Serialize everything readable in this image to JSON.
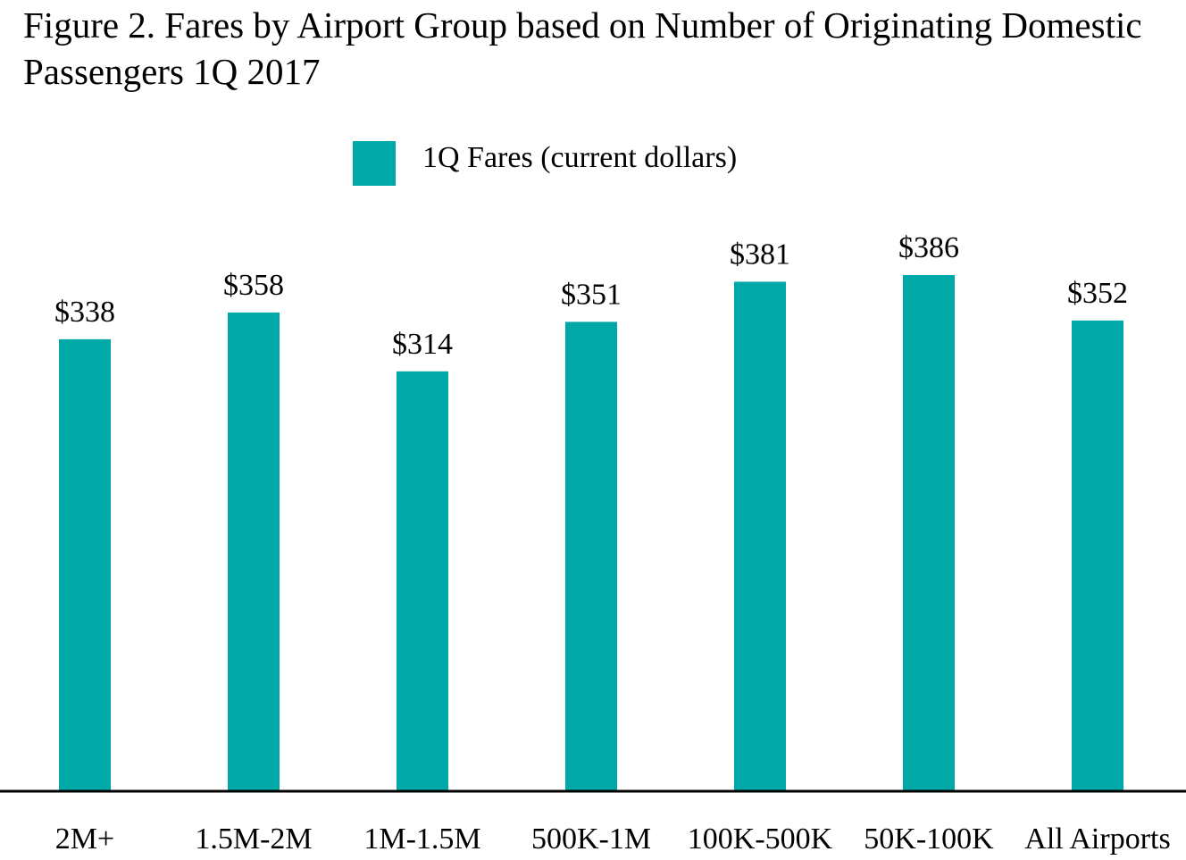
{
  "title": "Figure 2. Fares by Airport Group based on Number of Originating Domestic Passengers 1Q 2017",
  "colors": {
    "bar": "#00A8A8",
    "axis": "#000000"
  },
  "chart_data": {
    "type": "bar",
    "categories": [
      "2M+",
      "1.5M-2M",
      "1M-1.5M",
      "500K-1M",
      "100K-500K",
      "50K-100K",
      "All Airports"
    ],
    "series": [
      {
        "name": "1Q Fares (current dollars)",
        "values": [
          338,
          358,
          314,
          351,
          381,
          386,
          352
        ],
        "labels": [
          "$338",
          "$358",
          "$314",
          "$351",
          "$381",
          "$386",
          "$352"
        ]
      }
    ],
    "ylim": [
      0,
      386
    ],
    "grid": false,
    "legend_position": "top-center"
  }
}
